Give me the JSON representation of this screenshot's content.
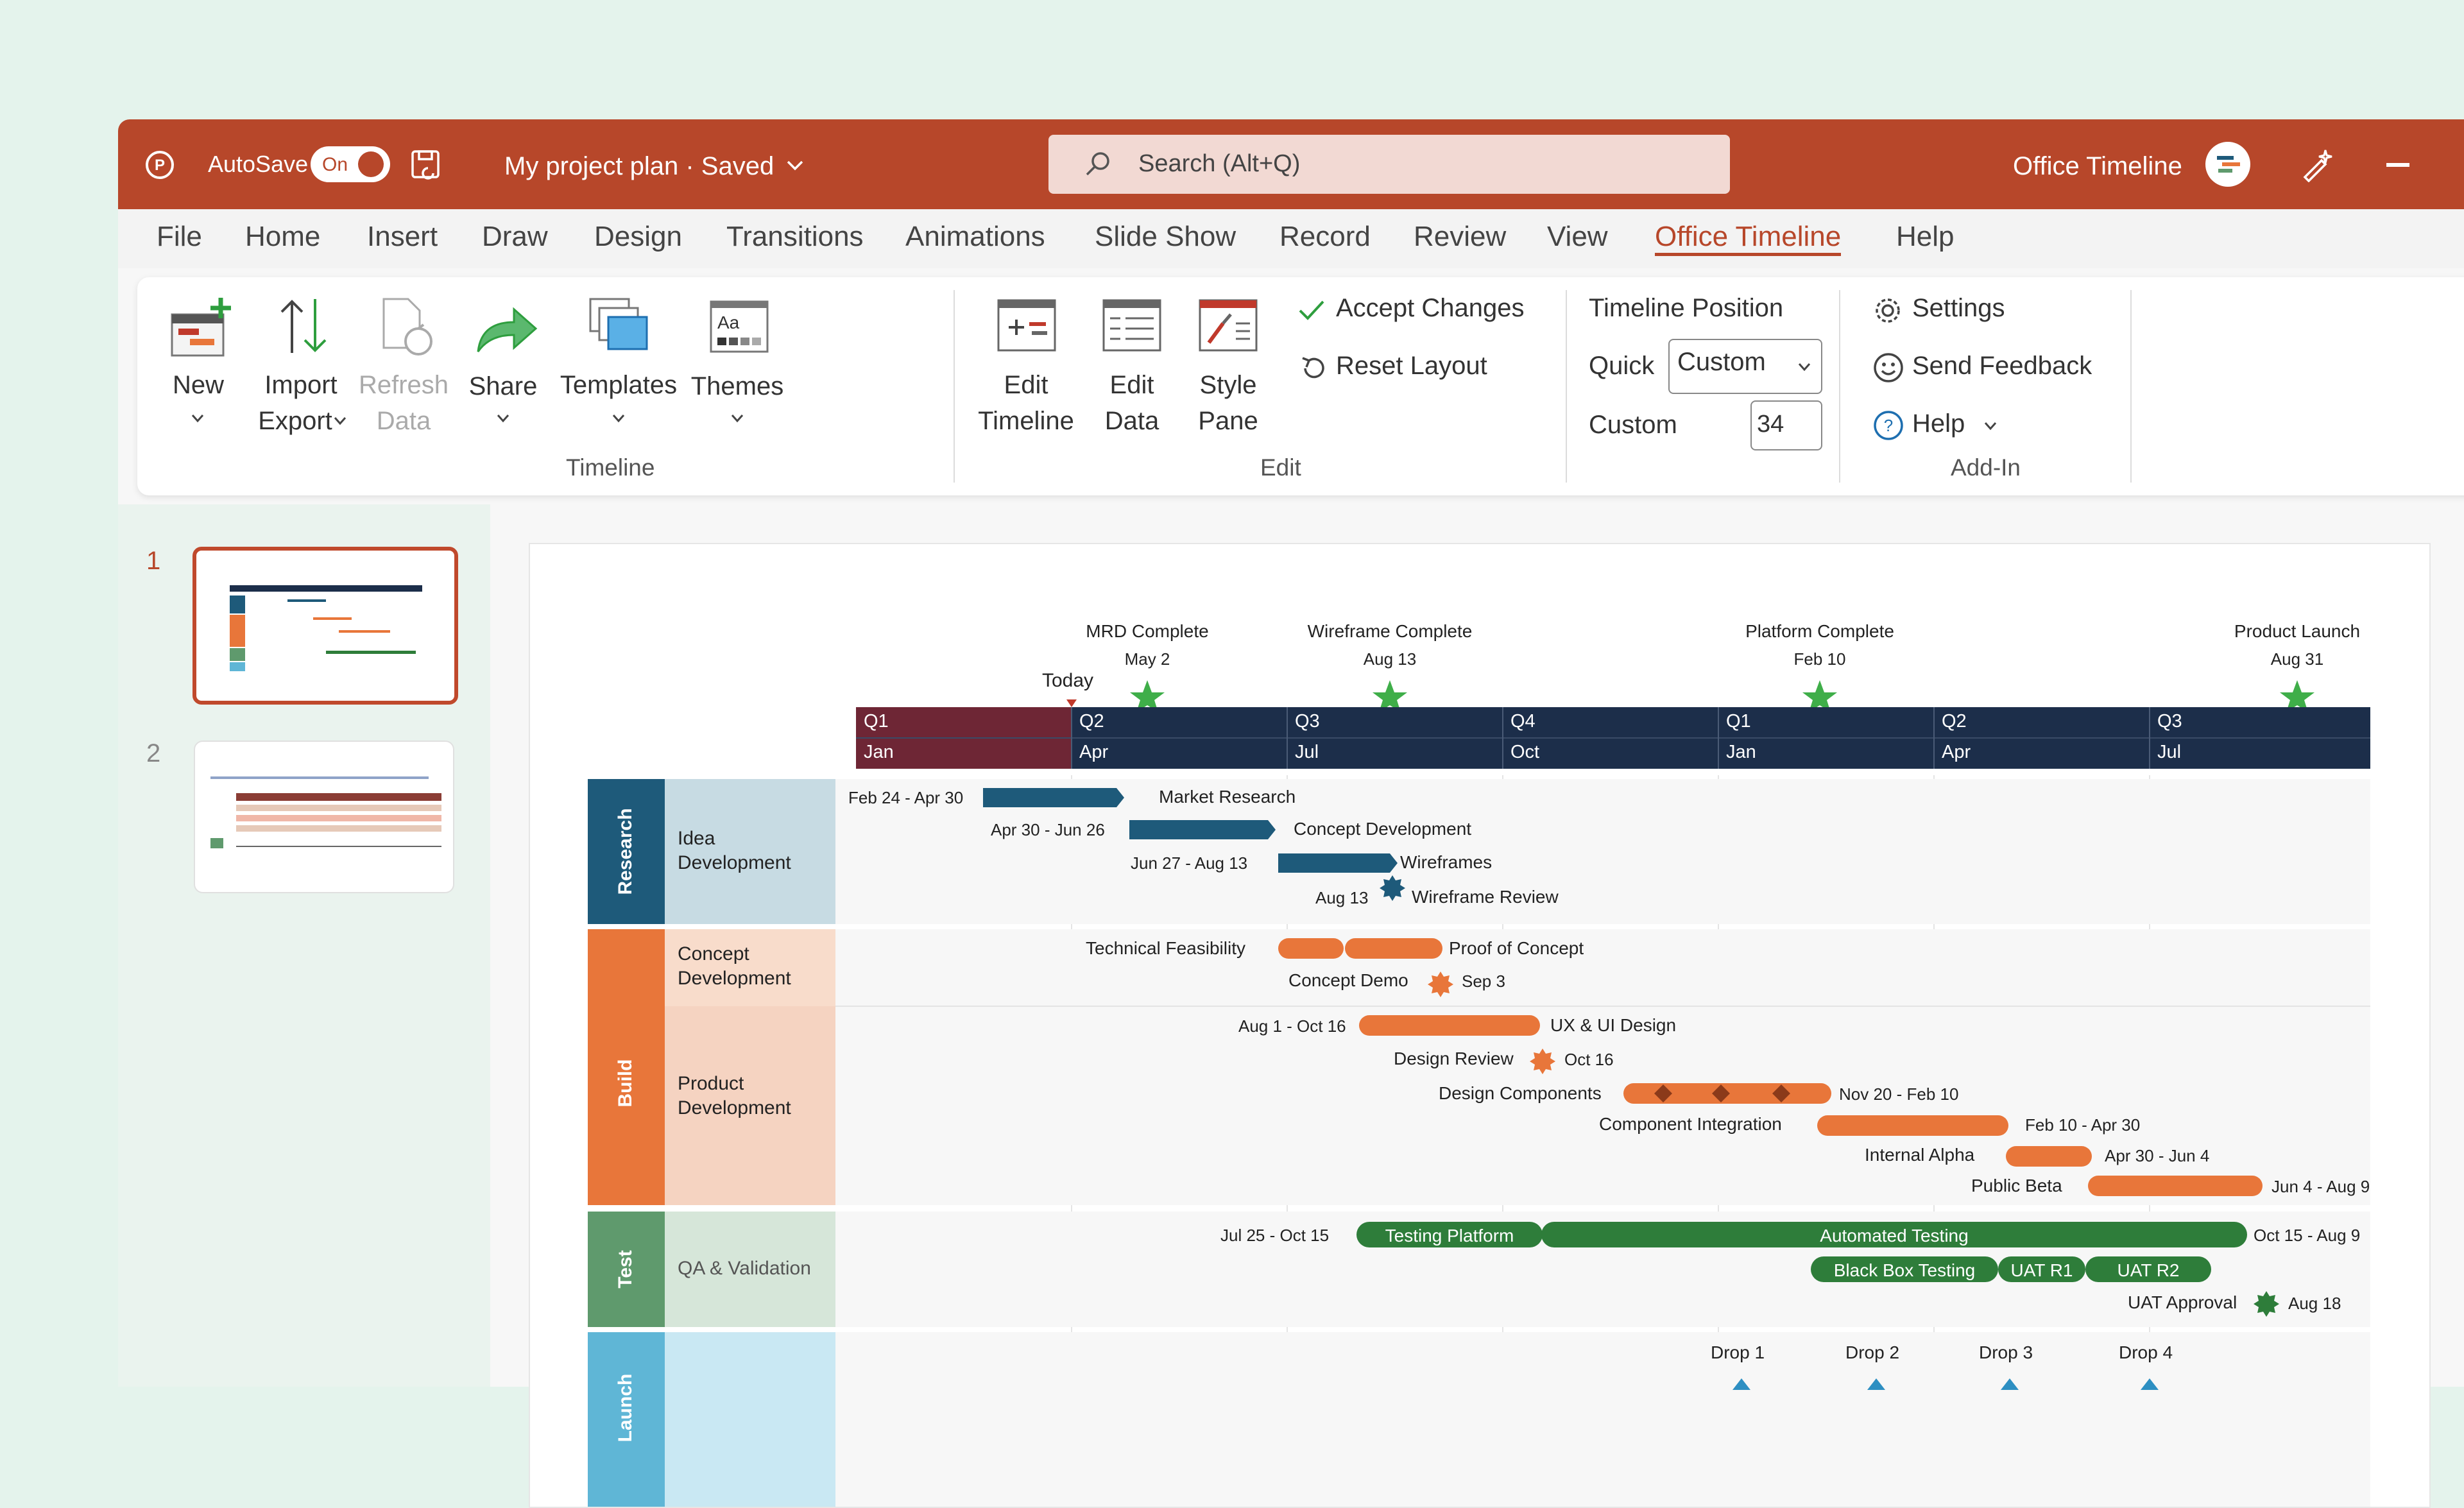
{
  "titlebar": {
    "autosave_label": "AutoSave",
    "autosave_state": "On",
    "doc_title": "My project plan · Saved",
    "search_placeholder": "Search (Alt+Q)",
    "account_name": "Office Timeline",
    "brand_color": "#b7472a"
  },
  "menu": [
    "File",
    "Home",
    "Insert",
    "Draw",
    "Design",
    "Transitions",
    "Animations",
    "Slide Show",
    "Record",
    "Review",
    "View",
    "Office Timeline",
    "Help"
  ],
  "menu_active": "Office Timeline",
  "ribbon": {
    "new_label": "New",
    "import_label": "Import",
    "export_label": "Export",
    "refresh_label": "Refresh",
    "refresh_label2": "Data",
    "share_label": "Share",
    "templates_label": "Templates",
    "themes_label": "Themes",
    "group_timeline": "Timeline",
    "edit_timeline_1": "Edit",
    "edit_timeline_2": "Timeline",
    "edit_data_1": "Edit",
    "edit_data_2": "Data",
    "style_pane_1": "Style",
    "style_pane_2": "Pane",
    "accept_changes": "Accept Changes",
    "reset_layout": "Reset Layout",
    "group_edit": "Edit",
    "timeline_position": "Timeline Position",
    "quick_label": "Quick",
    "quick_value": "Custom",
    "custom_label": "Custom",
    "custom_value": "34",
    "settings": "Settings",
    "send_feedback": "Send Feedback",
    "help": "Help",
    "group_addin": "Add-In"
  },
  "slides": [
    "1",
    "2"
  ],
  "timeline": {
    "today_label": "Today",
    "milestones": [
      {
        "name": "MRD Complete",
        "date": "May 2"
      },
      {
        "name": "Wireframe Complete",
        "date": "Aug 13"
      },
      {
        "name": "Platform Complete",
        "date": "Feb 10"
      },
      {
        "name": "Product Launch",
        "date": "Aug 31"
      }
    ],
    "scale": [
      {
        "q": "Q1",
        "m": "Jan"
      },
      {
        "q": "Q2",
        "m": "Apr"
      },
      {
        "q": "Q3",
        "m": "Jul"
      },
      {
        "q": "Q4",
        "m": "Oct"
      },
      {
        "q": "Q1",
        "m": "Jan"
      },
      {
        "q": "Q2",
        "m": "Apr"
      },
      {
        "q": "Q3",
        "m": "Jul"
      }
    ],
    "swimlanes": [
      {
        "name": "Research",
        "group": "Idea Development",
        "color": "#1e5a7a"
      },
      {
        "name": "Build",
        "group1": "Concept Development",
        "group2": "Product Development",
        "color": "#e8763a"
      },
      {
        "name": "Test",
        "group": "QA & Validation",
        "color": "#5f9a6d"
      },
      {
        "name": "Launch",
        "group": "",
        "color": "#5fb6d6"
      }
    ],
    "research_tasks": [
      {
        "dates": "Feb 24 - Apr 30",
        "name": "Market Research"
      },
      {
        "dates": "Apr 30 - Jun 26",
        "name": "Concept Development"
      },
      {
        "dates": "Jun 27 - Aug 13",
        "name": "Wireframes"
      },
      {
        "dates": "Aug 13",
        "name": "Wireframe Review"
      }
    ],
    "build_tasks": [
      {
        "name": "Technical Feasibility"
      },
      {
        "name": "Proof of Concept"
      },
      {
        "name": "Concept Demo",
        "dates": "Sep 3"
      },
      {
        "dates": "Aug 1 - Oct 16",
        "name": "UX & UI Design"
      },
      {
        "name": "Design Review",
        "dates": "Oct 16"
      },
      {
        "name": "Design Components",
        "dates": "Nov 20 - Feb 10"
      },
      {
        "name": "Component Integration",
        "dates": "Feb 10 - Apr 30"
      },
      {
        "name": "Internal Alpha",
        "dates": "Apr 30 - Jun 4"
      },
      {
        "name": "Public Beta",
        "dates": "Jun 4 - Aug 9"
      }
    ],
    "test_tasks": [
      {
        "dates": "Jul 25 - Oct 15",
        "name": "Testing Platform"
      },
      {
        "name": "Automated Testing",
        "dates": "Oct 15 - Aug 9"
      },
      {
        "name": "Black Box Testing"
      },
      {
        "name": "UAT R1"
      },
      {
        "name": "UAT R2"
      },
      {
        "name": "UAT Approval",
        "dates": "Aug 18"
      }
    ],
    "drops": [
      "Drop 1",
      "Drop 2",
      "Drop 3",
      "Drop 4"
    ]
  }
}
